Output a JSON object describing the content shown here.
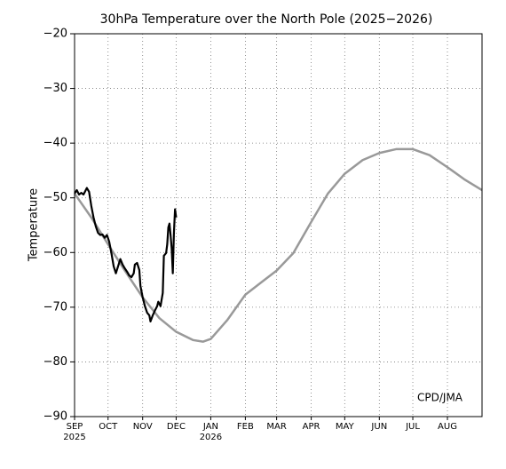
{
  "chart_data": {
    "type": "line",
    "title": "30hPa Temperature over the North Pole (2025−2026)",
    "y_label": "Temperature",
    "annotation": "CPD/JMA",
    "xlim": [
      0,
      365
    ],
    "ylim": [
      -90,
      -20
    ],
    "yticks": [
      {
        "value": -90,
        "label": "−90"
      },
      {
        "value": -80,
        "label": "−80"
      },
      {
        "value": -70,
        "label": "−70"
      },
      {
        "value": -60,
        "label": "−60"
      },
      {
        "value": -50,
        "label": "−50"
      },
      {
        "value": -40,
        "label": "−40"
      },
      {
        "value": -30,
        "label": "−30"
      },
      {
        "value": -20,
        "label": "−20"
      }
    ],
    "xticks": [
      {
        "value": 0,
        "label": "SEP"
      },
      {
        "value": 30,
        "label": "OCT"
      },
      {
        "value": 61,
        "label": "NOV"
      },
      {
        "value": 91,
        "label": "DEC"
      },
      {
        "value": 122,
        "label": "JAN"
      },
      {
        "value": 153,
        "label": "FEB"
      },
      {
        "value": 181,
        "label": "MAR"
      },
      {
        "value": 212,
        "label": "APR"
      },
      {
        "value": 242,
        "label": "MAY"
      },
      {
        "value": 273,
        "label": "JUN"
      },
      {
        "value": 303,
        "label": "JUL"
      },
      {
        "value": 334,
        "label": "AUG"
      }
    ],
    "x_year_labels": [
      {
        "value": 0,
        "label": "2025"
      },
      {
        "value": 122,
        "label": "2026"
      }
    ],
    "grid": true,
    "series": [
      {
        "color": "#999999",
        "width": 2.5,
        "x": [
          0,
          15,
          30,
          45,
          61,
          76,
          91,
          106,
          115,
          122,
          137,
          153,
          167,
          181,
          196,
          212,
          227,
          242,
          258,
          273,
          288,
          303,
          318,
          334,
          349,
          365
        ],
        "values": [
          -49.2,
          -53.6,
          -58.5,
          -63.3,
          -68.2,
          -72,
          -74.5,
          -76,
          -76.3,
          -75.8,
          -72.3,
          -67.7,
          -65.5,
          -63.3,
          -60.1,
          -54.4,
          -49.2,
          -45.6,
          -43.1,
          -41.8,
          -41.1,
          -41.1,
          -42.2,
          -44.4,
          -46.6,
          -48.6
        ]
      },
      {
        "color": "#000000",
        "width": 2.2,
        "x": [
          0,
          2,
          4,
          6,
          8,
          10,
          11,
          13,
          15,
          17,
          19,
          21,
          23,
          25,
          27,
          29,
          31,
          33,
          35,
          37,
          39,
          41,
          43,
          45,
          47,
          49,
          51,
          53,
          54,
          56,
          58,
          59,
          61,
          63,
          65,
          67,
          68,
          70,
          72,
          74,
          75,
          77,
          79,
          80,
          82,
          83,
          84,
          85,
          86,
          87,
          88,
          89,
          90,
          91
        ],
        "values": [
          -49.2,
          -48.6,
          -49.4,
          -49.1,
          -49.4,
          -48.6,
          -48.2,
          -48.9,
          -51.5,
          -53.6,
          -55.2,
          -56.4,
          -56.8,
          -56.7,
          -57.3,
          -56.8,
          -58,
          -60.1,
          -62.5,
          -63.8,
          -62.5,
          -61.2,
          -62.2,
          -62.9,
          -63.5,
          -64.2,
          -64.5,
          -63.8,
          -62.2,
          -61.9,
          -63.2,
          -66.1,
          -68.2,
          -69.8,
          -71,
          -71.5,
          -72.6,
          -71.5,
          -70.6,
          -69.8,
          -69,
          -69.8,
          -67.4,
          -60.6,
          -60.1,
          -58.5,
          -55.4,
          -54.7,
          -56.8,
          -59.3,
          -63.8,
          -56.4,
          -52.1,
          -53.6
        ]
      }
    ]
  }
}
